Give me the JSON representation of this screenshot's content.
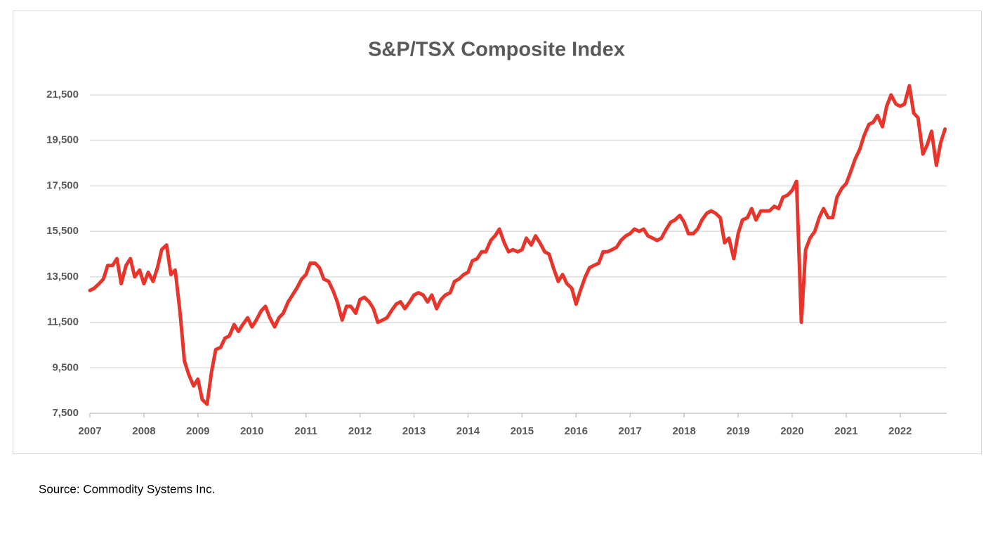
{
  "chart_data": {
    "type": "line",
    "title": "S&P/TSX Composite Index",
    "source": "Source: Commodity Systems Inc.",
    "xlim": [
      2007,
      2022.86
    ],
    "xticks": [
      2007,
      2008,
      2009,
      2010,
      2011,
      2012,
      2013,
      2014,
      2015,
      2016,
      2017,
      2018,
      2019,
      2020,
      2021,
      2022
    ],
    "ylim": [
      7500,
      22500
    ],
    "yticks": [
      {
        "value": 7500,
        "label": "7,500"
      },
      {
        "value": 9500,
        "label": "9,500"
      },
      {
        "value": 11500,
        "label": "11,500"
      },
      {
        "value": 13500,
        "label": "13,500"
      },
      {
        "value": 15500,
        "label": "15,500"
      },
      {
        "value": 17500,
        "label": "17,500"
      },
      {
        "value": 19500,
        "label": "19,500"
      },
      {
        "value": 21500,
        "label": "21,500"
      }
    ],
    "grid": true,
    "series": [
      {
        "name": "S&P/TSX Composite Index",
        "color": "#e8352b",
        "x": [
          2007.0,
          2007.08,
          2007.17,
          2007.25,
          2007.33,
          2007.42,
          2007.5,
          2007.58,
          2007.67,
          2007.75,
          2007.83,
          2007.92,
          2008.0,
          2008.08,
          2008.17,
          2008.25,
          2008.33,
          2008.42,
          2008.5,
          2008.58,
          2008.67,
          2008.75,
          2008.83,
          2008.92,
          2009.0,
          2009.08,
          2009.17,
          2009.25,
          2009.33,
          2009.42,
          2009.5,
          2009.58,
          2009.67,
          2009.75,
          2009.83,
          2009.92,
          2010.0,
          2010.08,
          2010.17,
          2010.25,
          2010.33,
          2010.42,
          2010.5,
          2010.58,
          2010.67,
          2010.75,
          2010.83,
          2010.92,
          2011.0,
          2011.08,
          2011.17,
          2011.25,
          2011.33,
          2011.42,
          2011.5,
          2011.58,
          2011.67,
          2011.75,
          2011.83,
          2011.92,
          2012.0,
          2012.08,
          2012.17,
          2012.25,
          2012.33,
          2012.42,
          2012.5,
          2012.58,
          2012.67,
          2012.75,
          2012.83,
          2012.92,
          2013.0,
          2013.08,
          2013.17,
          2013.25,
          2013.33,
          2013.42,
          2013.5,
          2013.58,
          2013.67,
          2013.75,
          2013.83,
          2013.92,
          2014.0,
          2014.08,
          2014.17,
          2014.25,
          2014.33,
          2014.42,
          2014.5,
          2014.58,
          2014.67,
          2014.75,
          2014.83,
          2014.92,
          2015.0,
          2015.08,
          2015.17,
          2015.25,
          2015.33,
          2015.42,
          2015.5,
          2015.58,
          2015.67,
          2015.75,
          2015.83,
          2015.92,
          2016.0,
          2016.08,
          2016.17,
          2016.25,
          2016.33,
          2016.42,
          2016.5,
          2016.58,
          2016.67,
          2016.75,
          2016.83,
          2016.92,
          2017.0,
          2017.08,
          2017.17,
          2017.25,
          2017.33,
          2017.42,
          2017.5,
          2017.58,
          2017.67,
          2017.75,
          2017.83,
          2017.92,
          2018.0,
          2018.08,
          2018.17,
          2018.25,
          2018.33,
          2018.42,
          2018.5,
          2018.58,
          2018.67,
          2018.75,
          2018.83,
          2018.92,
          2019.0,
          2019.08,
          2019.17,
          2019.25,
          2019.33,
          2019.42,
          2019.5,
          2019.58,
          2019.67,
          2019.75,
          2019.83,
          2019.92,
          2020.0,
          2020.08,
          2020.17,
          2020.25,
          2020.33,
          2020.42,
          2020.5,
          2020.58,
          2020.67,
          2020.75,
          2020.83,
          2020.92,
          2021.0,
          2021.08,
          2021.17,
          2021.25,
          2021.33,
          2021.42,
          2021.5,
          2021.58,
          2021.67,
          2021.75,
          2021.83,
          2021.92,
          2022.0,
          2022.08,
          2022.17,
          2022.25,
          2022.33,
          2022.42,
          2022.5,
          2022.58,
          2022.67,
          2022.75,
          2022.83
        ],
        "values": [
          12900,
          13000,
          13200,
          13400,
          14000,
          14000,
          14300,
          13200,
          14000,
          14300,
          13500,
          13800,
          13200,
          13700,
          13300,
          13900,
          14700,
          14900,
          13600,
          13800,
          11900,
          9800,
          9200,
          8700,
          9000,
          8100,
          7900,
          9300,
          10300,
          10400,
          10800,
          10900,
          11400,
          11100,
          11400,
          11700,
          11300,
          11600,
          12000,
          12200,
          11700,
          11300,
          11700,
          11900,
          12400,
          12700,
          13000,
          13400,
          13600,
          14100,
          14100,
          13900,
          13400,
          13300,
          12900,
          12400,
          11600,
          12200,
          12200,
          11900,
          12500,
          12600,
          12400,
          12100,
          11500,
          11600,
          11700,
          12000,
          12300,
          12400,
          12100,
          12400,
          12700,
          12800,
          12700,
          12400,
          12700,
          12100,
          12500,
          12700,
          12800,
          13300,
          13400,
          13600,
          13700,
          14200,
          14300,
          14600,
          14600,
          15100,
          15300,
          15600,
          15000,
          14600,
          14700,
          14600,
          14700,
          15200,
          14900,
          15300,
          15000,
          14600,
          14500,
          13900,
          13300,
          13600,
          13200,
          13000,
          12300,
          12900,
          13500,
          13900,
          14000,
          14100,
          14600,
          14600,
          14700,
          14800,
          15100,
          15300,
          15400,
          15600,
          15500,
          15600,
          15300,
          15200,
          15100,
          15200,
          15600,
          15900,
          16000,
          16200,
          15900,
          15400,
          15400,
          15600,
          16000,
          16300,
          16400,
          16300,
          16100,
          15000,
          15200,
          14300,
          15400,
          16000,
          16100,
          16500,
          16000,
          16400,
          16400,
          16400,
          16600,
          16500,
          17000,
          17100,
          17300,
          17700,
          11500,
          14700,
          15200,
          15500,
          16100,
          16500,
          16100,
          16100,
          17000,
          17400,
          17600,
          18100,
          18700,
          19100,
          19700,
          20200,
          20300,
          20600,
          20100,
          21000,
          21500,
          21100,
          21000,
          21100,
          21900,
          20700,
          20500,
          18900,
          19300,
          19900,
          18400,
          19400,
          20000
        ]
      }
    ]
  }
}
